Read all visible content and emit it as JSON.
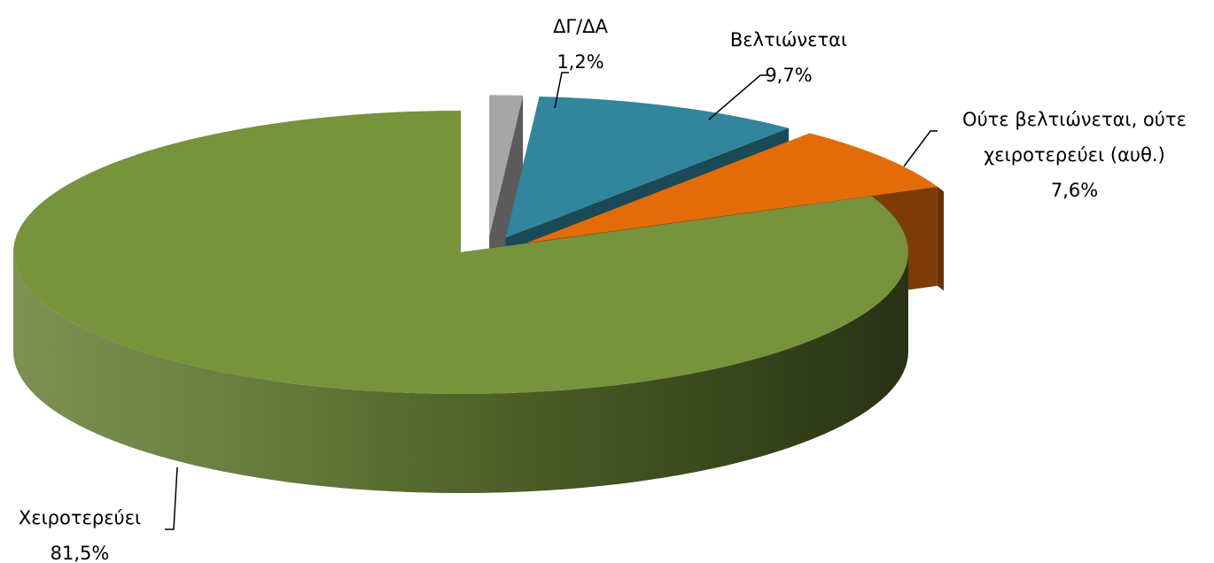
{
  "chart_data": {
    "type": "pie",
    "categories": [
      "ΔΓ/ΔΑ",
      "Βελτιώνεται",
      "Ούτε βελτιώνεται, ούτε χειροτερεύει (αυθ.)",
      "Χειροτερεύει"
    ],
    "values": [
      1.2,
      9.7,
      7.6,
      81.5
    ],
    "value_labels": [
      "1,2%",
      "9,7%",
      "7,6%",
      "81,5%"
    ],
    "colors": [
      "#a6a6a6",
      "#31859c",
      "#e36c09",
      "#77933c"
    ],
    "three_d": true
  }
}
